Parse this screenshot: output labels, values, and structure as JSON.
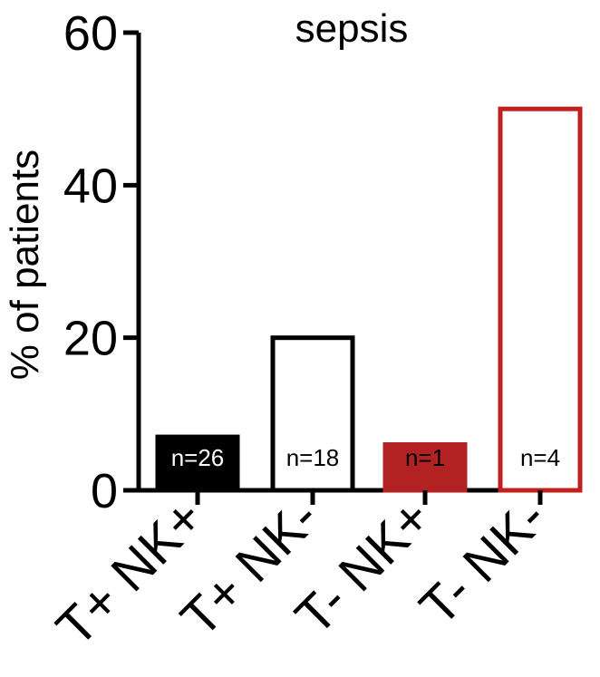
{
  "chart_data": {
    "type": "bar",
    "title": "sepsis",
    "ylabel": "% of patients",
    "xlabel": "",
    "ylim": [
      0,
      60
    ],
    "yticks": [
      0,
      20,
      40,
      60
    ],
    "categories": [
      "T+ NK+",
      "T+ NK-",
      "T- NK+",
      "T- NK-"
    ],
    "values": [
      7,
      20,
      6,
      50
    ],
    "n_labels": [
      "n=26",
      "n=18",
      "n=1",
      "n=4"
    ],
    "bar_styles": [
      {
        "fill": "#000000",
        "stroke": "#000000",
        "label_color": "#ffffff"
      },
      {
        "fill": "#ffffff",
        "stroke": "#000000",
        "label_color": "#000000"
      },
      {
        "fill": "#b22222",
        "stroke": "#b22222",
        "label_color": "#000000"
      },
      {
        "fill": "#ffffff",
        "stroke": "#c0201e",
        "label_color": "#000000"
      }
    ],
    "grid": false,
    "legend": "none"
  }
}
